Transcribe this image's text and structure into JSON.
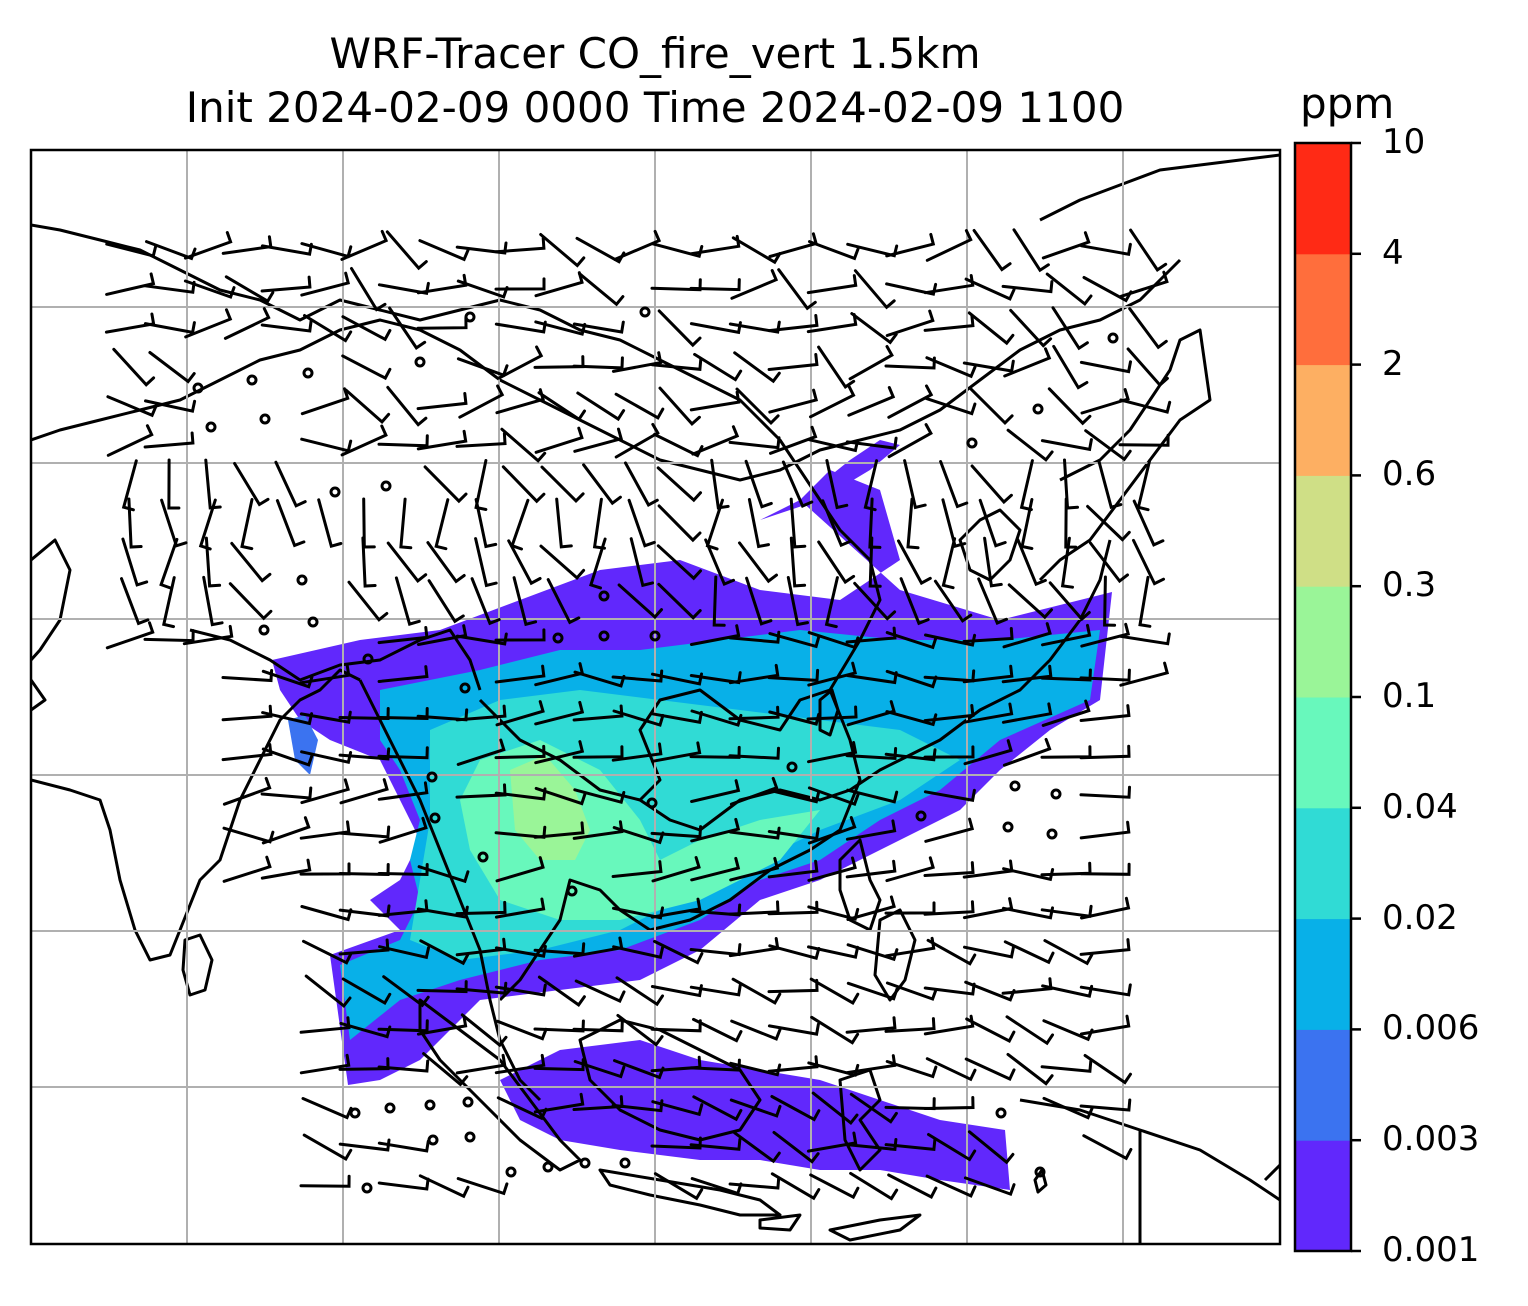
{
  "title_line1": "WRF-Tracer CO_fire_vert 1.5km",
  "title_line2": "Init 2024-02-09 0000 Time 2024-02-09 1100",
  "colorbar": {
    "unit": "ppm",
    "ticks": [
      "0.001",
      "0.003",
      "0.006",
      "0.02",
      "0.04",
      "0.1",
      "0.3",
      "0.6",
      "2",
      "4",
      "10"
    ],
    "colors": [
      "#6128fc",
      "#3b73f0",
      "#08b0e8",
      "#30dbd5",
      "#68f8bc",
      "#9af598",
      "#cfdf86",
      "#fdaf62",
      "#ff6e3c",
      "#ff2a15"
    ]
  },
  "map": {
    "gridlines": "on",
    "coastline_color": "#000000",
    "grid_color": "#b0b0b0"
  }
}
